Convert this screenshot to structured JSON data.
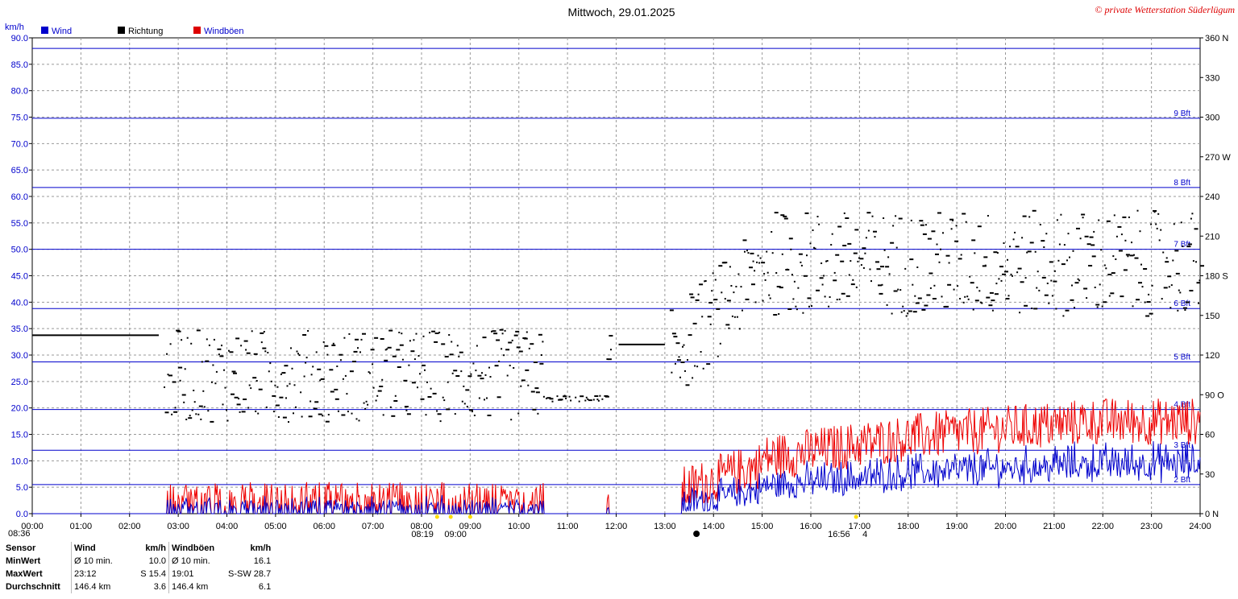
{
  "header": {
    "title": "Mittwoch, 29.01.2025",
    "copyright": "© private Wetterstation Süderlügum",
    "unit_left": "km/h"
  },
  "legend": [
    {
      "label": "Wind",
      "color": "#0000cc"
    },
    {
      "label": "Richtung",
      "color": "#000000"
    },
    {
      "label": "Windböen",
      "color": "#dd0000"
    }
  ],
  "colors": {
    "wind": "#0000cc",
    "gust": "#ee0000",
    "direction": "#000000",
    "bft": "#0000cc",
    "grid": "#999999",
    "sun": "#ffdd00"
  },
  "chart_data": {
    "type": "line",
    "title": "Mittwoch, 29.01.2025",
    "ylabel": "km/h",
    "ylim": [
      0,
      90
    ],
    "y_ticks": [
      "0.0",
      "5.0",
      "10.0",
      "15.0",
      "20.0",
      "25.0",
      "30.0",
      "35.0",
      "40.0",
      "45.0",
      "50.0",
      "55.0",
      "60.0",
      "65.0",
      "70.0",
      "75.0",
      "80.0",
      "85.0",
      "90.0"
    ],
    "y2lim": [
      0,
      360
    ],
    "y2_ticks": [
      "0 N",
      "30",
      "60",
      "90 O",
      "120",
      "150",
      "180 S",
      "210",
      "240",
      "270 W",
      "300",
      "330",
      "360 N"
    ],
    "xlim_hours": [
      0,
      24
    ],
    "x_ticks": [
      "00:00",
      "01:00",
      "02:00",
      "03:00",
      "04:00",
      "05:00",
      "06:00",
      "07:00",
      "08:00",
      "09:00",
      "10:00",
      "11:00",
      "12:00",
      "13:00",
      "14:00",
      "15:00",
      "16:00",
      "17:00",
      "18:00",
      "19:00",
      "20:00",
      "21:00",
      "22:00",
      "23:00",
      "24:00"
    ],
    "beaufort_lines": [
      {
        "label": "2 Bft",
        "kmh": 5.5
      },
      {
        "label": "3 Bft",
        "kmh": 12.0
      },
      {
        "label": "4 Bft",
        "kmh": 19.7
      },
      {
        "label": "5 Bft",
        "kmh": 28.7
      },
      {
        "label": "6 Bft",
        "kmh": 38.8
      },
      {
        "label": "7 Bft",
        "kmh": 50.0
      },
      {
        "label": "8 Bft",
        "kmh": 61.7
      },
      {
        "label": "9 Bft",
        "kmh": 74.8
      },
      {
        "label": "",
        "kmh": 88.0
      }
    ],
    "series": [
      {
        "name": "Wind",
        "unit": "km/h",
        "axis": "left"
      },
      {
        "name": "Windböen",
        "unit": "km/h",
        "axis": "left"
      },
      {
        "name": "Richtung",
        "unit": "deg",
        "axis": "right"
      }
    ],
    "sun_markers": [
      {
        "label": "08:36",
        "hour": 8.6
      },
      {
        "label": "08:19",
        "hour": 8.32
      },
      {
        "label": "09:00",
        "hour": 9.0
      },
      {
        "label": "16:56",
        "hour": 16.93
      }
    ],
    "sun_marker_extra": "4",
    "direction_segments": [
      {
        "from": 0.0,
        "to": 2.6,
        "deg": 135
      },
      {
        "from": 12.05,
        "to": 13.0,
        "deg": 128
      }
    ]
  },
  "stats": {
    "headers": [
      "Sensor",
      "Wind",
      "km/h",
      "Windböen",
      "km/h"
    ],
    "rows": [
      [
        "MinWert",
        "Ø 10 min.",
        "10.0",
        "Ø 10 min.",
        "16.1"
      ],
      [
        "MaxWert",
        "23:12",
        "S 15.4",
        "19:01",
        "S-SW 28.7"
      ],
      [
        "Durchschnitt",
        "146.4 km",
        "3.6",
        "146.4 km",
        "6.1"
      ]
    ]
  }
}
